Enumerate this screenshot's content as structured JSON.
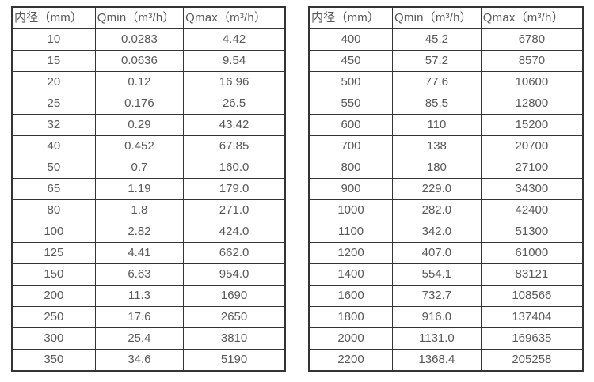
{
  "page": {
    "background_color": "#ffffff",
    "border_color": "#343434",
    "text_color": "#585858"
  },
  "tables": [
    {
      "name": "flow-rate-table-small-diameters",
      "headers": [
        "内径（mm）",
        "Qmin（m³/h）",
        "Qmax（m³/h）"
      ],
      "rows": [
        [
          "10",
          "0.0283",
          "4.42"
        ],
        [
          "15",
          "0.0636",
          "9.54"
        ],
        [
          "20",
          "0.12",
          "16.96"
        ],
        [
          "25",
          "0.176",
          "26.5"
        ],
        [
          "32",
          "0.29",
          "43.42"
        ],
        [
          "40",
          "0.452",
          "67.85"
        ],
        [
          "50",
          "0.7",
          "160.0"
        ],
        [
          "65",
          "1.19",
          "179.0"
        ],
        [
          "80",
          "1.8",
          "271.0"
        ],
        [
          "100",
          "2.82",
          "424.0"
        ],
        [
          "125",
          "4.41",
          "662.0"
        ],
        [
          "150",
          "6.63",
          "954.0"
        ],
        [
          "200",
          "11.3",
          "1690"
        ],
        [
          "250",
          "17.6",
          "2650"
        ],
        [
          "300",
          "25.4",
          "3810"
        ],
        [
          "350",
          "34.6",
          "5190"
        ]
      ]
    },
    {
      "name": "flow-rate-table-large-diameters",
      "headers": [
        "内径（mm）",
        "Qmin（m³/h）",
        "Qmax（m³/h）"
      ],
      "rows": [
        [
          "400",
          "45.2",
          "6780"
        ],
        [
          "450",
          "57.2",
          "8570"
        ],
        [
          "500",
          "77.6",
          "10600"
        ],
        [
          "550",
          "85.5",
          "12800"
        ],
        [
          "600",
          "110",
          "15200"
        ],
        [
          "700",
          "138",
          "20700"
        ],
        [
          "800",
          "180",
          "27100"
        ],
        [
          "900",
          "229.0",
          "34300"
        ],
        [
          "1000",
          "282.0",
          "42400"
        ],
        [
          "1100",
          "342.0",
          "51300"
        ],
        [
          "1200",
          "407.0",
          "61000"
        ],
        [
          "1400",
          "554.1",
          "83121"
        ],
        [
          "1600",
          "732.7",
          "108566"
        ],
        [
          "1800",
          "916.0",
          "137404"
        ],
        [
          "2000",
          "1131.0",
          "169635"
        ],
        [
          "2200",
          "1368.4",
          "205258"
        ]
      ]
    }
  ]
}
